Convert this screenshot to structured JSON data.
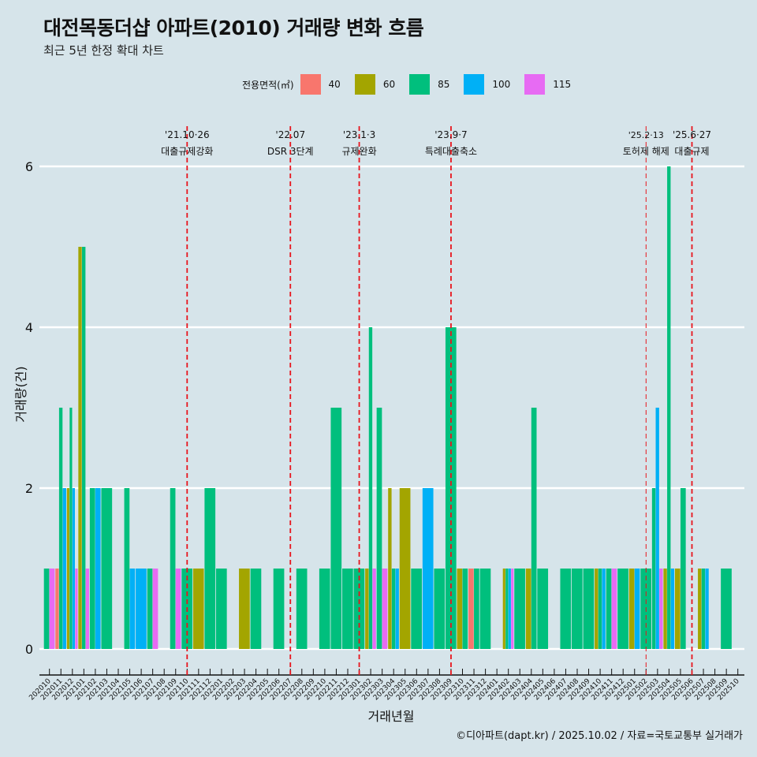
{
  "title": "대전목동더샵 아파트(2010) 거래량 변화 흐름",
  "subtitle": "최근 5년 한정 확대 차트",
  "footer": "©디아파트(dapt.kr) / 2025.10.02 / 자료=국토교통부 실거래가",
  "legend": {
    "title": "전용면적(㎡)",
    "items": [
      {
        "label": "40",
        "color": "#f8766d"
      },
      {
        "label": "60",
        "color": "#a3a500"
      },
      {
        "label": "85",
        "color": "#00bf7d"
      },
      {
        "label": "100",
        "color": "#00b0f6"
      },
      {
        "label": "115",
        "color": "#e76bf3"
      }
    ]
  },
  "chart_data": {
    "type": "bar",
    "title": "대전목동더샵 아파트(2010) 거래량 변화 흐름",
    "xlabel": "거래년월",
    "ylabel": "거래량(건)",
    "ylim": [
      0,
      6.5
    ],
    "yticks": [
      0,
      2,
      4,
      6
    ],
    "grid": true,
    "legend_position": "top",
    "categories": [
      "202010",
      "202011",
      "202012",
      "202101",
      "202102",
      "202103",
      "202104",
      "202105",
      "202106",
      "202107",
      "202108",
      "202109",
      "202110",
      "202111",
      "202112",
      "202201",
      "202202",
      "202203",
      "202204",
      "202205",
      "202206",
      "202207",
      "202208",
      "202209",
      "202210",
      "202211",
      "202212",
      "202301",
      "202302",
      "202303",
      "202304",
      "202305",
      "202306",
      "202307",
      "202308",
      "202309",
      "202310",
      "202311",
      "202312",
      "202401",
      "202402",
      "202403",
      "202404",
      "202405",
      "202406",
      "202407",
      "202408",
      "202409",
      "202410",
      "202411",
      "202412",
      "202501",
      "202502",
      "202503",
      "202504",
      "202505",
      "202506",
      "202507",
      "202508",
      "202509",
      "202510"
    ],
    "series_names": [
      "40",
      "60",
      "85",
      "100",
      "115"
    ],
    "bars": {
      "202010": {
        "85": 1,
        "115": 1
      },
      "202011": {
        "40": 1,
        "85": 3,
        "100": 2
      },
      "202012": {
        "60": 2,
        "85": 3,
        "100": 2,
        "115": 1
      },
      "202101": {
        "60": 5,
        "85": 5,
        "115": 1
      },
      "202102": {
        "85": 2,
        "100": 2
      },
      "202103": {
        "85": 2
      },
      "202105": {
        "85": 2,
        "100": 1
      },
      "202106": {
        "100": 1
      },
      "202107": {
        "85": 1,
        "115": 1
      },
      "202109": {
        "85": 2,
        "115": 1
      },
      "202110": {
        "85": 1
      },
      "202111": {
        "60": 1
      },
      "202112": {
        "85": 2
      },
      "202201": {
        "85": 1
      },
      "202203": {
        "60": 1
      },
      "202204": {
        "85": 1
      },
      "202206": {
        "85": 1
      },
      "202208": {
        "85": 1
      },
      "202210": {
        "85": 1
      },
      "202211": {
        "85": 3
      },
      "202212": {
        "85": 1
      },
      "202301": {
        "85": 1
      },
      "202302": {
        "60": 1,
        "85": 4,
        "115": 1
      },
      "202303": {
        "85": 3,
        "115": 1
      },
      "202304": {
        "60": 2,
        "85": 1,
        "100": 1
      },
      "202305": {
        "60": 2
      },
      "202306": {
        "85": 1
      },
      "202307": {
        "100": 2
      },
      "202308": {
        "85": 1
      },
      "202309": {
        "85": 4
      },
      "202310": {
        "60": 1,
        "85": 1
      },
      "202311": {
        "40": 1,
        "85": 1
      },
      "202312": {
        "85": 1
      },
      "202402": {
        "60": 1,
        "85": 1,
        "100": 1,
        "115": 1
      },
      "202403": {
        "85": 1
      },
      "202404": {
        "60": 1,
        "85": 3
      },
      "202405": {
        "85": 1
      },
      "202407": {
        "85": 1
      },
      "202408": {
        "85": 1
      },
      "202409": {
        "85": 1
      },
      "202410": {
        "60": 1,
        "85": 1,
        "100": 1
      },
      "202411": {
        "85": 1,
        "115": 1
      },
      "202412": {
        "85": 1
      },
      "202501": {
        "60": 1,
        "100": 1
      },
      "202502": {
        "85": 1
      },
      "202503": {
        "85": 2,
        "100": 3,
        "115": 1
      },
      "202504": {
        "60": 1,
        "85": 6,
        "100": 1
      },
      "202505": {
        "60": 1,
        "85": 2
      },
      "202507": {
        "60": 1,
        "85": 1,
        "100": 1
      },
      "202509": {
        "85": 1
      }
    },
    "annotations": [
      {
        "at": "202110",
        "date": "'21.10·26",
        "label": "대출규제강화",
        "thin": false
      },
      {
        "at": "202207",
        "date": "'22.07",
        "label": "DSR 3단계",
        "thin": false
      },
      {
        "at": "202301",
        "date": "'23.1·3",
        "label": "규제완화",
        "thin": false
      },
      {
        "at": "202309",
        "date": "'23.9·7",
        "label": "특례대출축소",
        "thin": false
      },
      {
        "at": "202502",
        "date": "'25.2·13",
        "label": "토허제 해제",
        "thin": true
      },
      {
        "at": "202506",
        "date": "'25.6·27",
        "label": "대출규제",
        "thin": false
      }
    ]
  }
}
